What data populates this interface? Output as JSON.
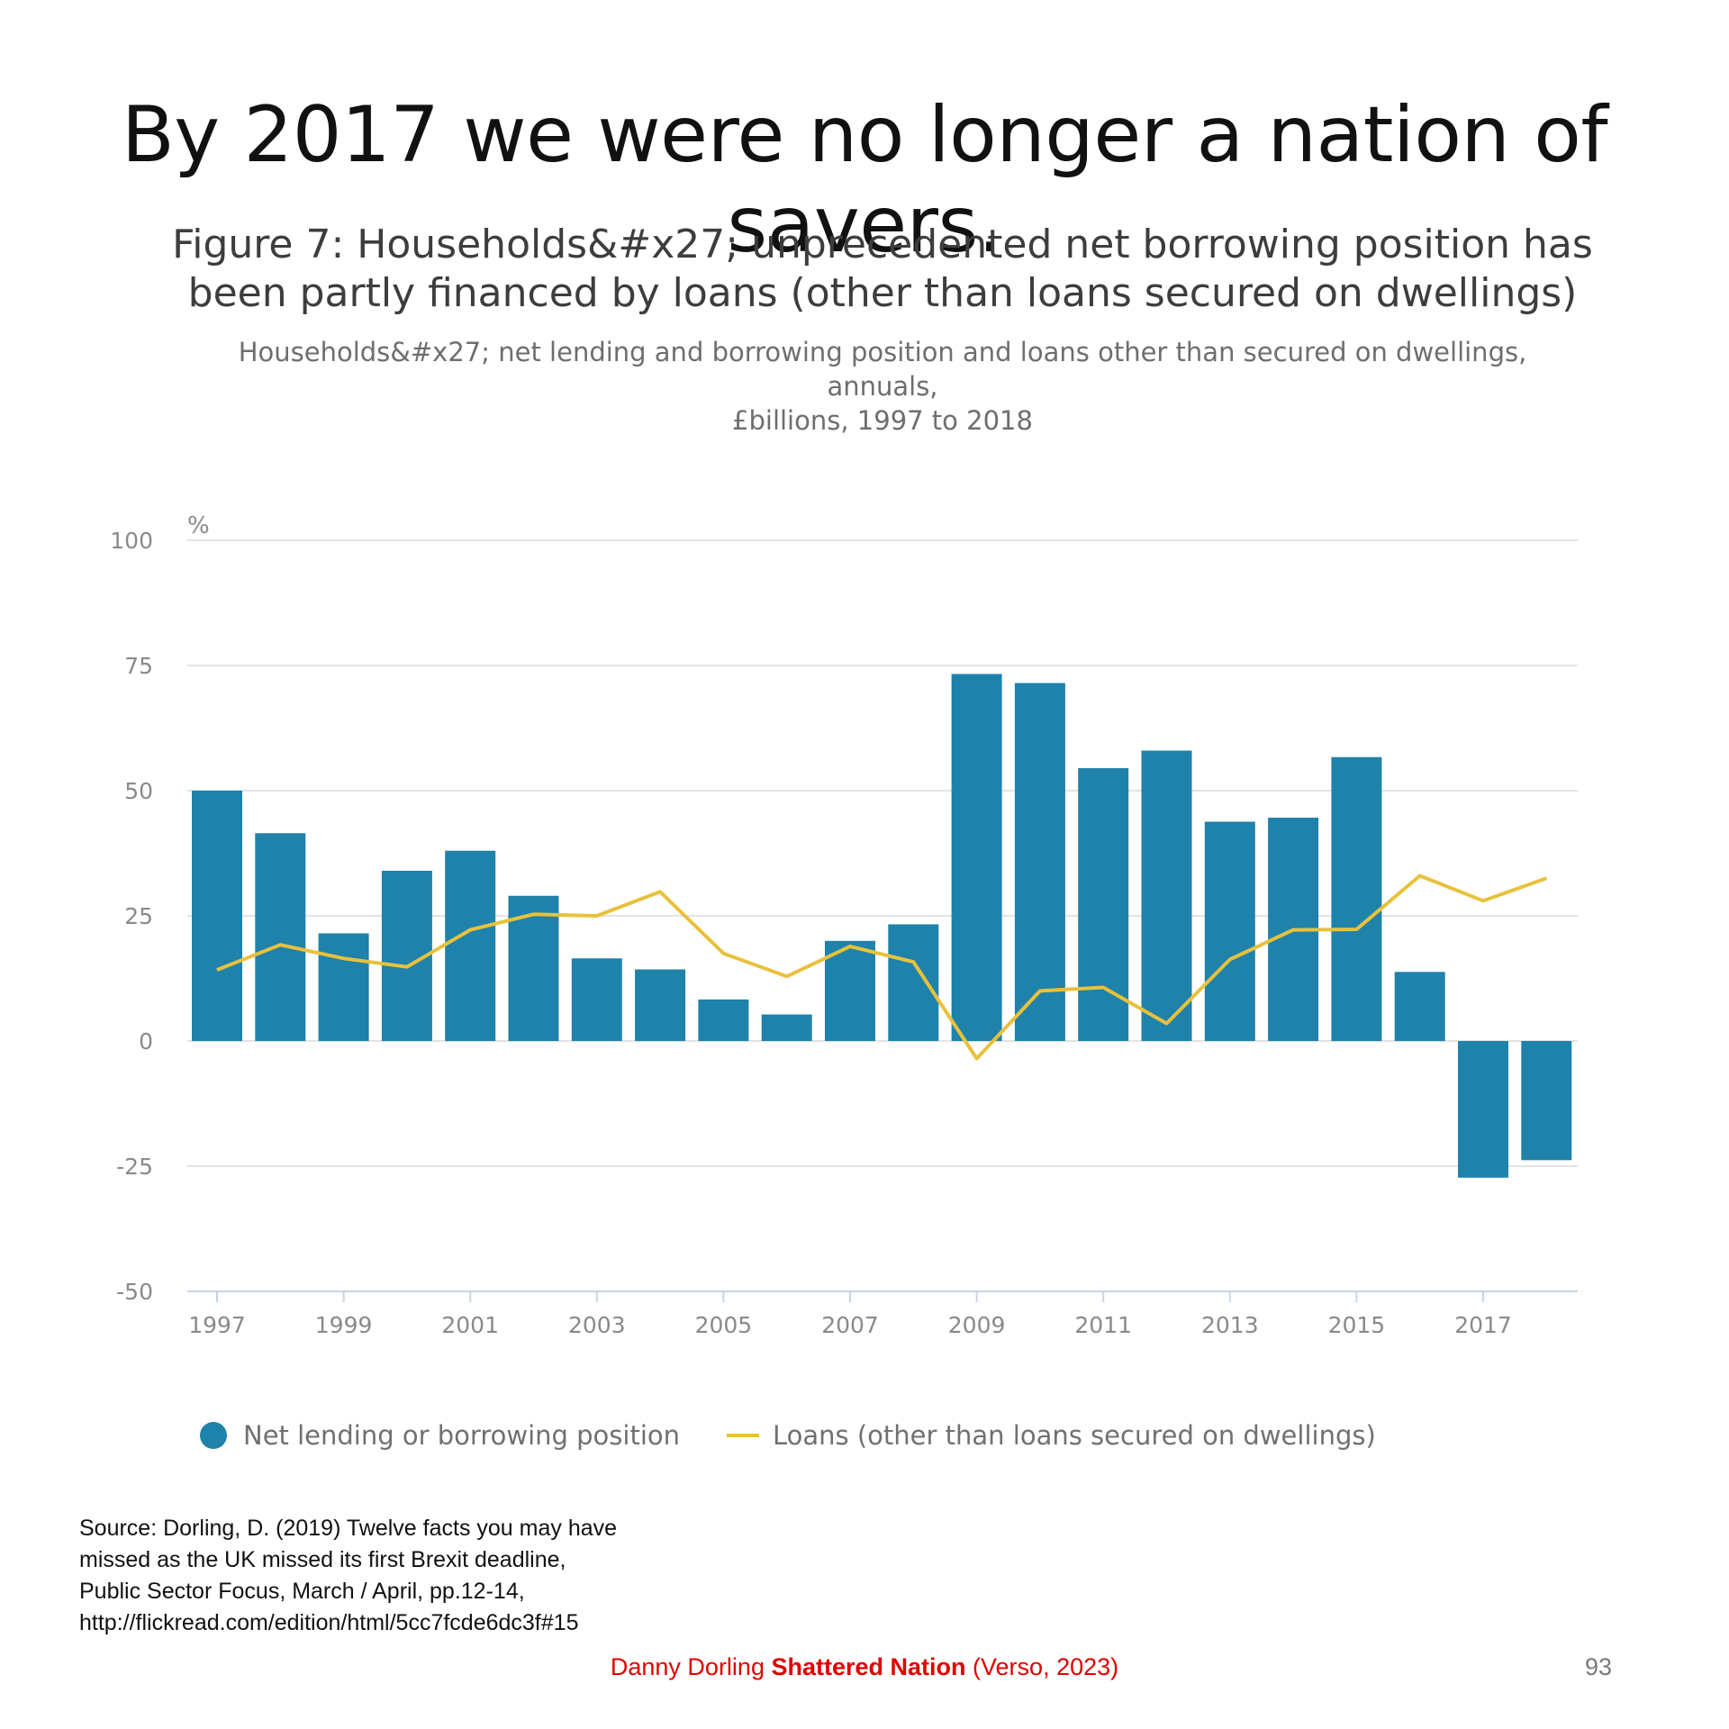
{
  "slide": {
    "title": "By 2017 we were no longer a nation of savers.",
    "page_number": "93"
  },
  "chart_data": {
    "type": "bar",
    "title": "Figure 7: Households&#x27; unprecedented net borrowing position has been partly financed by loans (other than loans secured on dwellings)",
    "title_lines": [
      "Figure 7: Households&#x27; unprecedented net borrowing position has",
      "been partly financed by loans (other than loans secured on dwellings)"
    ],
    "subtitle_lines": [
      "Households&#x27; net lending and borrowing position and loans other than secured on dwellings, annuals,",
      "£billions, 1997 to 2018"
    ],
    "ylabel": "%",
    "xlabel": "",
    "ylim": [
      -50,
      100
    ],
    "yticks": [
      100,
      75,
      50,
      25,
      0,
      -25,
      -50
    ],
    "ytick_labels": [
      "100",
      "75",
      "50",
      "25",
      "0",
      "-25",
      "-50"
    ],
    "grid": true,
    "categories": [
      "1997",
      "1998",
      "1999",
      "2000",
      "2001",
      "2002",
      "2003",
      "2004",
      "2005",
      "2006",
      "2007",
      "2008",
      "2009",
      "2010",
      "2011",
      "2012",
      "2013",
      "2014",
      "2015",
      "2016",
      "2017",
      "2018"
    ],
    "xtick_labels": [
      "1997",
      "1999",
      "2001",
      "2003",
      "2005",
      "2007",
      "2009",
      "2011",
      "2013",
      "2015",
      "2017"
    ],
    "series": [
      {
        "name": "Net lending or borrowing position",
        "type": "bar",
        "color": "#1f82aa",
        "values": [
          50,
          41.5,
          21.5,
          34,
          38,
          29,
          16.5,
          14.3,
          8.3,
          5.3,
          20,
          23.3,
          73.3,
          71.5,
          54.5,
          58,
          43.8,
          44.6,
          56.7,
          13.8,
          -27.3,
          -23.8
        ]
      },
      {
        "name": "Loans (other than loans secured on dwellings)",
        "type": "line",
        "color": "#e8c13c",
        "values": [
          14.2,
          19.2,
          16.5,
          14.8,
          22.2,
          25.3,
          25,
          29.8,
          17.5,
          12.9,
          18.9,
          15.8,
          -3.5,
          10,
          10.7,
          3.5,
          16.3,
          22.2,
          22.3,
          33,
          28,
          32.5
        ]
      }
    ],
    "legend_position": "bottom"
  },
  "source": {
    "lines": [
      "Source: Dorling, D. (2019) Twelve facts you may have",
      "missed as the UK missed its first Brexit deadline,",
      "Public Sector Focus, March / April, pp.12-14,",
      "http://flickread.com/edition/html/5cc7fcde6dc3f#15"
    ]
  },
  "footer": {
    "author": "Danny Dorling",
    "book": "Shattered Nation",
    "publisher": "(Verso, 2023)"
  }
}
